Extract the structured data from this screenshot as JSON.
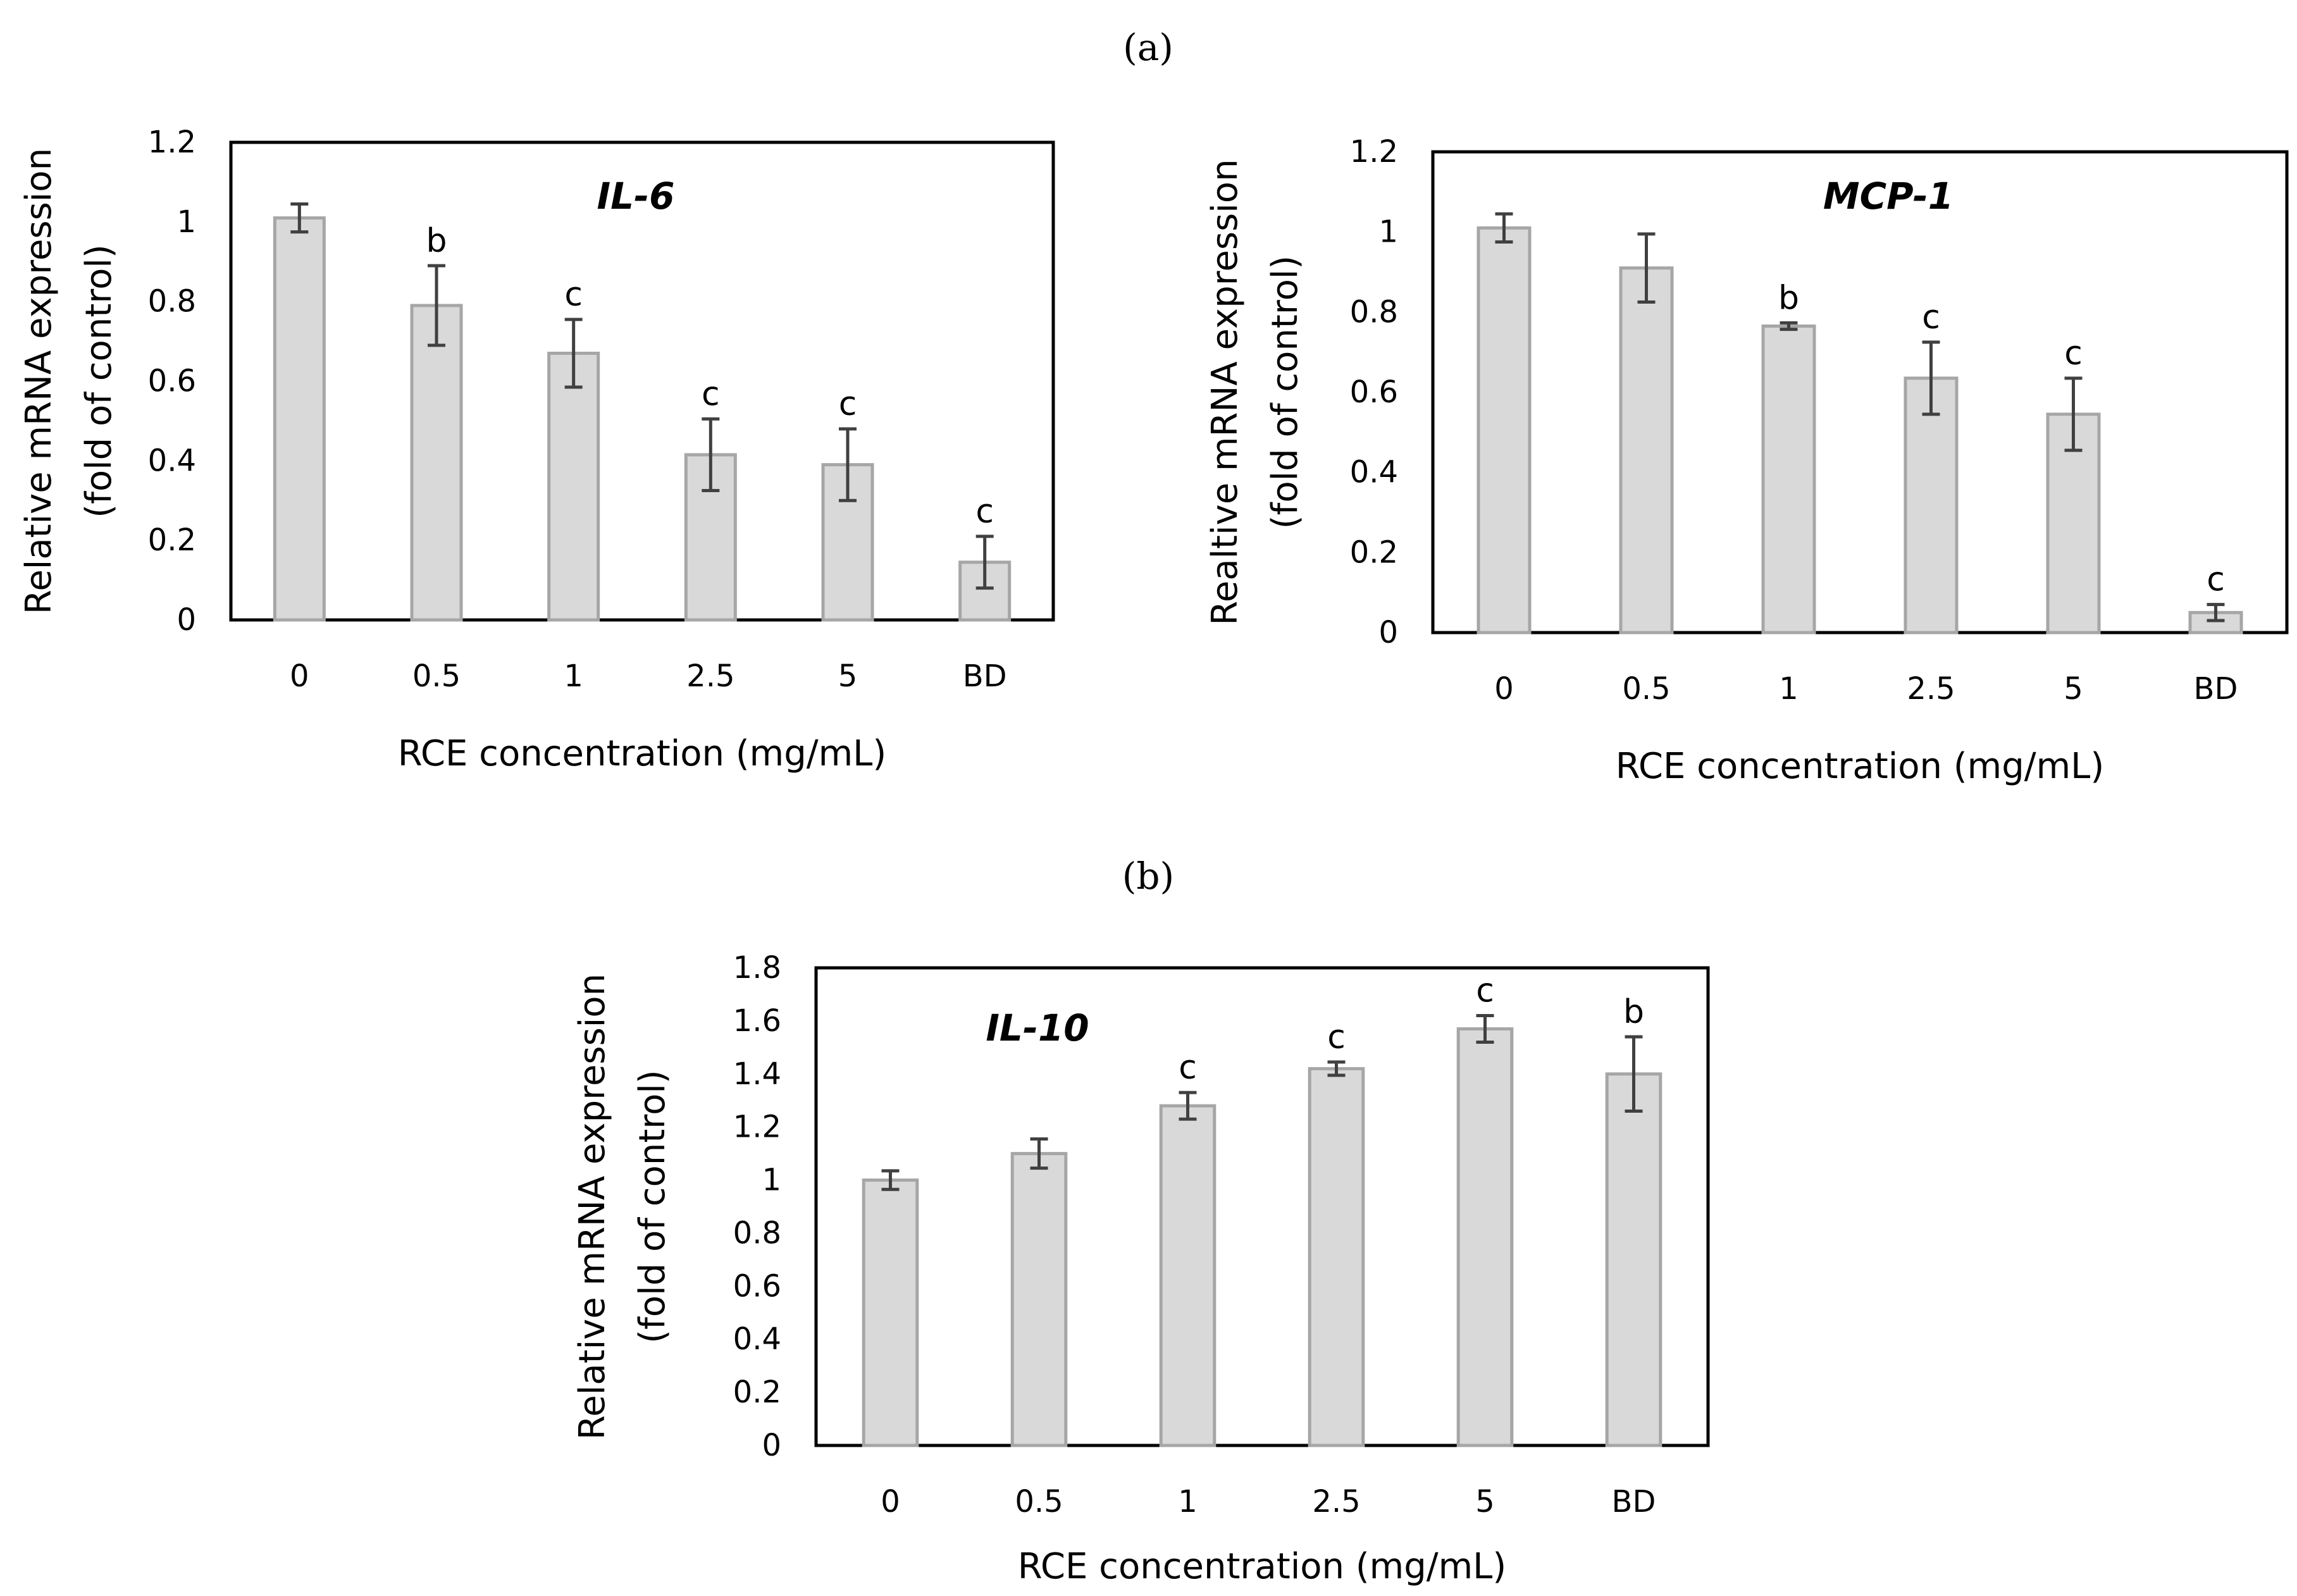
{
  "panel_labels": {
    "a": "(a)",
    "b": "(b)"
  },
  "colors": {
    "bar_fill": "#d9d9d9",
    "bar_stroke": "#a6a6a6",
    "error_bar": "#404040",
    "frame": "#000000"
  },
  "chart_data": [
    {
      "type": "bar",
      "title": "IL-6",
      "categories": [
        "0",
        "0.5",
        "1",
        "2.5",
        "5",
        "BD"
      ],
      "values": [
        1.01,
        0.79,
        0.67,
        0.415,
        0.39,
        0.145
      ],
      "errors": [
        0.035,
        0.1,
        0.085,
        0.09,
        0.09,
        0.065
      ],
      "annotations": [
        "",
        "b",
        "c",
        "c",
        "c",
        "c"
      ],
      "xlabel": "RCE concentration (mg/mL)",
      "ylabel": [
        "Relative mRNA expression",
        "(fold of control)"
      ],
      "ylim": [
        0,
        1.2
      ],
      "yticks": [
        "0",
        "0.2",
        "0.4",
        "0.6",
        "0.8",
        "1",
        "1.2"
      ],
      "grid": false
    },
    {
      "type": "bar",
      "title": "MCP-1",
      "categories": [
        "0",
        "0.5",
        "1",
        "2.5",
        "5",
        "BD"
      ],
      "values": [
        1.01,
        0.91,
        0.765,
        0.635,
        0.545,
        0.05
      ],
      "errors": [
        0.035,
        0.085,
        0.008,
        0.09,
        0.09,
        0.02
      ],
      "annotations": [
        "",
        "",
        "b",
        "c",
        "c",
        "c"
      ],
      "xlabel": "RCE concentration (mg/mL)",
      "ylabel": [
        "Realtive mRNA expression",
        "(fold of control)"
      ],
      "ylim": [
        0,
        1.2
      ],
      "yticks": [
        "0",
        "0.2",
        "0.4",
        "0.6",
        "0.8",
        "1",
        "1.2"
      ],
      "grid": false
    },
    {
      "type": "bar",
      "title": "IL-10",
      "categories": [
        "0",
        "0.5",
        "1",
        "2.5",
        "5",
        "BD"
      ],
      "values": [
        1.0,
        1.1,
        1.28,
        1.42,
        1.57,
        1.4
      ],
      "errors": [
        0.035,
        0.055,
        0.05,
        0.025,
        0.05,
        0.14
      ],
      "annotations": [
        "",
        "",
        "c",
        "c",
        "c",
        "b"
      ],
      "xlabel": "RCE concentration (mg/mL)",
      "ylabel": [
        "Relative mRNA expression",
        "(fold of control)"
      ],
      "ylim": [
        0,
        1.8
      ],
      "yticks": [
        "0",
        "0.2",
        "0.4",
        "0.6",
        "0.8",
        "1",
        "1.2",
        "1.4",
        "1.6",
        "1.8"
      ],
      "grid": false
    }
  ]
}
